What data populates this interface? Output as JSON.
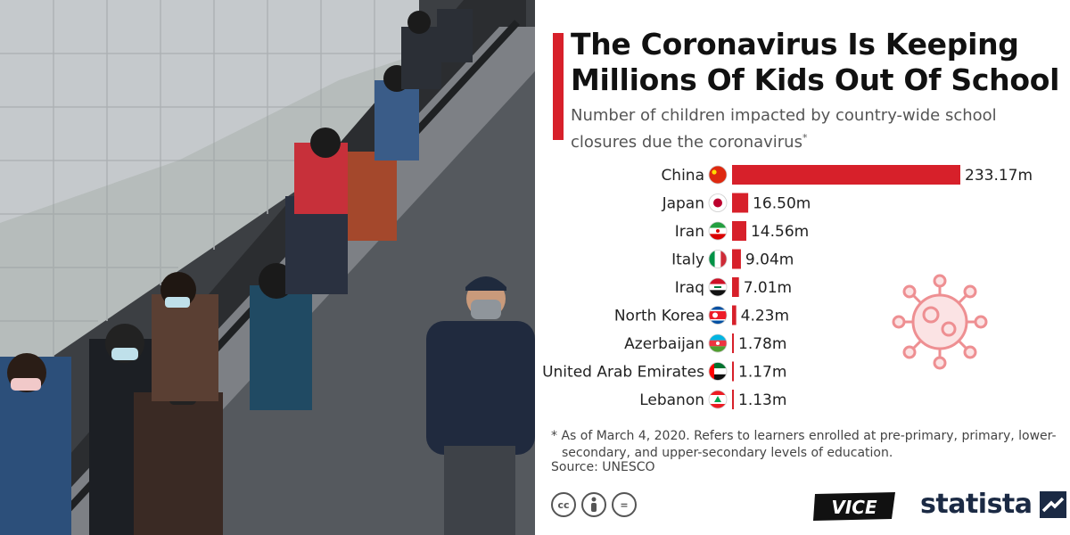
{
  "title": "The Coronavirus Is Keeping Millions Of Kids Out Of School",
  "subtitle": "Number of children impacted by country-wide school closures due the coronavirus",
  "subtitle_marker": "*",
  "footnote": "* As of March 4, 2020. Refers to learners enrolled at pre-primary, primary, lower-secondary, and upper-secondary levels of education.",
  "source": "Source: UNESCO",
  "logos": {
    "vice": "VICE",
    "statista": "statista"
  },
  "license_icons": [
    "cc-icon",
    "by-icon",
    "nd-icon"
  ],
  "colors": {
    "accent": "#d7202a",
    "text": "#222222",
    "brand_statista": "#1b2a44"
  },
  "chart_data": {
    "type": "bar",
    "orientation": "horizontal",
    "unit": "m",
    "categories": [
      "China",
      "Japan",
      "Iran",
      "Italy",
      "Iraq",
      "North Korea",
      "Azerbaijan",
      "United Arab Emirates",
      "Lebanon"
    ],
    "values": [
      233.17,
      16.5,
      14.56,
      9.04,
      7.01,
      4.23,
      1.78,
      1.17,
      1.13
    ],
    "value_labels": [
      "233.17m",
      "16.50m",
      "14.56m",
      "9.04m",
      "7.01m",
      "4.23m",
      "1.78m",
      "1.17m",
      "1.13m"
    ],
    "flags": [
      "china-flag-icon",
      "japan-flag-icon",
      "iran-flag-icon",
      "italy-flag-icon",
      "iraq-flag-icon",
      "north-korea-flag-icon",
      "azerbaijan-flag-icon",
      "uae-flag-icon",
      "lebanon-flag-icon"
    ],
    "title": "",
    "xlabel": "",
    "ylabel": "",
    "grid": false,
    "legend": "none",
    "bar_color": "#d7202a"
  }
}
